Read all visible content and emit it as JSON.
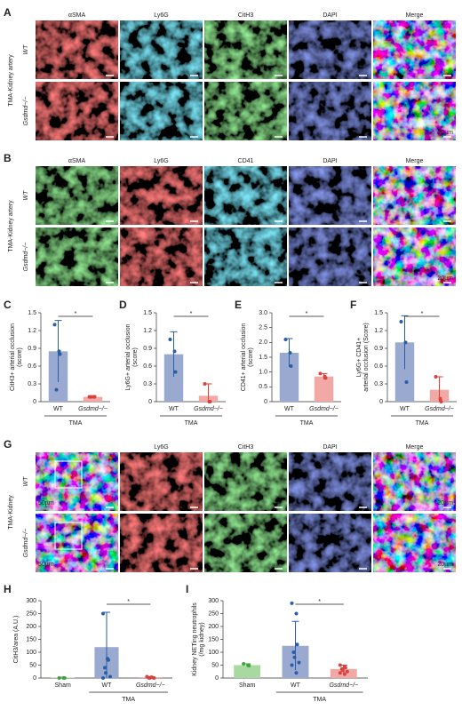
{
  "image_panels": [
    {
      "label": "A",
      "side_label": "TMA-Kidney artery",
      "rows": [
        "WT",
        "Gsdmd−/−"
      ],
      "channels": [
        {
          "name": "αSMA",
          "color": "#d42a2a"
        },
        {
          "name": "Ly6G",
          "color": "#2aa6c4"
        },
        {
          "name": "CitH3",
          "color": "#3caa3c"
        },
        {
          "name": "DAPI",
          "color": "#2d3a9e"
        },
        {
          "name": "Merge",
          "color": "#222222"
        }
      ],
      "scale_labels": [
        "20µm"
      ]
    },
    {
      "label": "B",
      "side_label": "TMA-Kidney artery",
      "rows": [
        "WT",
        "Gsdmd−/−"
      ],
      "channels": [
        {
          "name": "αSMA",
          "color": "#3caa3c"
        },
        {
          "name": "Ly6G",
          "color": "#d42a2a"
        },
        {
          "name": "CD41",
          "color": "#2aa6c4"
        },
        {
          "name": "DAPI",
          "color": "#2d3a9e"
        },
        {
          "name": "Merge",
          "color": "#222222"
        }
      ],
      "scale_labels": [
        "20µm"
      ]
    },
    {
      "label": "G",
      "side_label": "TMA-Kidney",
      "rows": [
        "WT",
        "Gsdmd−/−"
      ],
      "channels": [
        {
          "name": "Ly6G",
          "color": "#d42a2a"
        },
        {
          "name": "CitH3",
          "color": "#3caa3c"
        },
        {
          "name": "DAPI",
          "color": "#2d3a9e"
        },
        {
          "name": "Merge",
          "color": "#222222"
        }
      ],
      "scale_labels": [
        "50µm",
        "20µm"
      ]
    }
  ],
  "chart_data": [
    {
      "type": "bar",
      "label": "C",
      "y_label": [
        "CitH3+ arterial occlusion",
        "(score)"
      ],
      "categories": [
        "WT",
        "Gsdmd−/−"
      ],
      "group_label": "TMA",
      "significance": "*",
      "values": [
        0.85,
        0.08
      ],
      "errors": [
        0.52,
        0.02
      ],
      "points": [
        [
          1.3,
          0.85,
          0.8,
          0.2
        ],
        [
          0.08,
          0.08,
          0.08,
          0.08
        ]
      ],
      "bar_colors": [
        "#9aa9cf",
        "#f2a9a6"
      ],
      "point_colors": [
        "#2a5da8",
        "#d9423d"
      ],
      "ylim": [
        0,
        1.5
      ],
      "yticks": [
        0,
        0.3,
        0.6,
        0.9,
        1.2,
        1.5
      ]
    },
    {
      "type": "bar",
      "label": "D",
      "y_label": [
        "Ly6G+ arterial occlusion",
        "(score)"
      ],
      "categories": [
        "WT",
        "Gsdmd−/−"
      ],
      "group_label": "TMA",
      "significance": "*",
      "values": [
        0.8,
        0.1
      ],
      "errors": [
        0.38,
        0.2
      ],
      "points": [
        [
          1.05,
          0.85,
          0.5
        ],
        [
          0.3,
          0.0,
          0.0
        ]
      ],
      "bar_colors": [
        "#9aa9cf",
        "#f2a9a6"
      ],
      "point_colors": [
        "#2a5da8",
        "#d9423d"
      ],
      "ylim": [
        0,
        1.5
      ],
      "yticks": [
        0,
        0.3,
        0.6,
        0.9,
        1.2,
        1.5
      ]
    },
    {
      "type": "bar",
      "label": "E",
      "y_label": [
        "CD41+ arterial occlusion",
        "(score)"
      ],
      "categories": [
        "WT",
        "Gsdmd−/−"
      ],
      "group_label": "TMA",
      "significance": "*",
      "values": [
        1.65,
        0.85
      ],
      "errors": [
        0.48,
        0.1
      ],
      "points": [
        [
          2.1,
          1.65,
          1.2
        ],
        [
          0.95,
          0.85,
          0.8
        ]
      ],
      "bar_colors": [
        "#9aa9cf",
        "#f2a9a6"
      ],
      "point_colors": [
        "#2a5da8",
        "#d9423d"
      ],
      "ylim": [
        0,
        3
      ],
      "yticks": [
        0,
        0.5,
        {
          "value": 1,
          "label": "1.0"
        },
        1.5,
        {
          "value": 2,
          "label": "2.0"
        },
        2.5,
        {
          "value": 3,
          "label": "3.0"
        }
      ]
    },
    {
      "type": "bar",
      "label": "F",
      "y_label": [
        "Ly6G+ CD41+",
        "arterial occlusion (Score)"
      ],
      "categories": [
        "WT",
        "Gsdmd−/−"
      ],
      "group_label": "TMA",
      "significance": "*",
      "values": [
        1.0,
        0.2
      ],
      "errors": [
        0.45,
        0.22
      ],
      "points": [
        [
          1.35,
          1.0,
          0.33
        ],
        [
          0.42,
          0.05,
          0.0
        ]
      ],
      "bar_colors": [
        "#9aa9cf",
        "#f2a9a6"
      ],
      "point_colors": [
        "#2a5da8",
        "#d9423d"
      ],
      "ylim": [
        0,
        1.5
      ],
      "yticks": [
        0,
        0.3,
        0.6,
        0.9,
        1.2,
        1.5
      ]
    },
    {
      "type": "bar",
      "label": "H",
      "y_label": [
        "CitH3/area (A.U.)"
      ],
      "categories": [
        "Sham",
        "WT",
        "Gsdmd−/−"
      ],
      "group_label": "TMA",
      "significance": "*",
      "values": [
        2,
        120,
        3
      ],
      "errors": [
        1,
        135,
        2
      ],
      "points": [
        [
          0,
          0,
          0
        ],
        [
          250,
          75,
          70,
          40,
          20,
          5,
          0
        ],
        [
          5,
          3,
          2,
          1,
          0,
          0
        ]
      ],
      "bar_colors": [
        "#a8d9a0",
        "#9aa9cf",
        "#f2a9a6"
      ],
      "point_colors": [
        "#3da33d",
        "#2a5da8",
        "#d9423d"
      ],
      "ylim": [
        0,
        300
      ],
      "yticks": [
        0,
        50,
        100,
        150,
        200,
        250,
        300
      ]
    },
    {
      "type": "bar",
      "label": "I",
      "y_label": [
        "Kidney NETing neutrophils",
        "(/mg kidney)"
      ],
      "categories": [
        "Sham",
        "WT",
        "Gsdmd−/−"
      ],
      "group_label": "TMA",
      "significance": "*",
      "values": [
        50,
        125,
        35
      ],
      "errors": [
        5,
        95,
        15
      ],
      "points": [
        [
          55,
          50,
          48
        ],
        [
          290,
          250,
          130,
          100,
          80,
          60,
          50,
          20
        ],
        [
          50,
          45,
          40,
          35,
          30,
          25,
          20,
          15
        ]
      ],
      "bar_colors": [
        "#a8d9a0",
        "#9aa9cf",
        "#f2a9a6"
      ],
      "point_colors": [
        "#3da33d",
        "#2a5da8",
        "#d9423d"
      ],
      "ylim": [
        0,
        300
      ],
      "yticks": [
        0,
        50,
        100,
        150,
        200,
        250,
        300
      ]
    }
  ]
}
